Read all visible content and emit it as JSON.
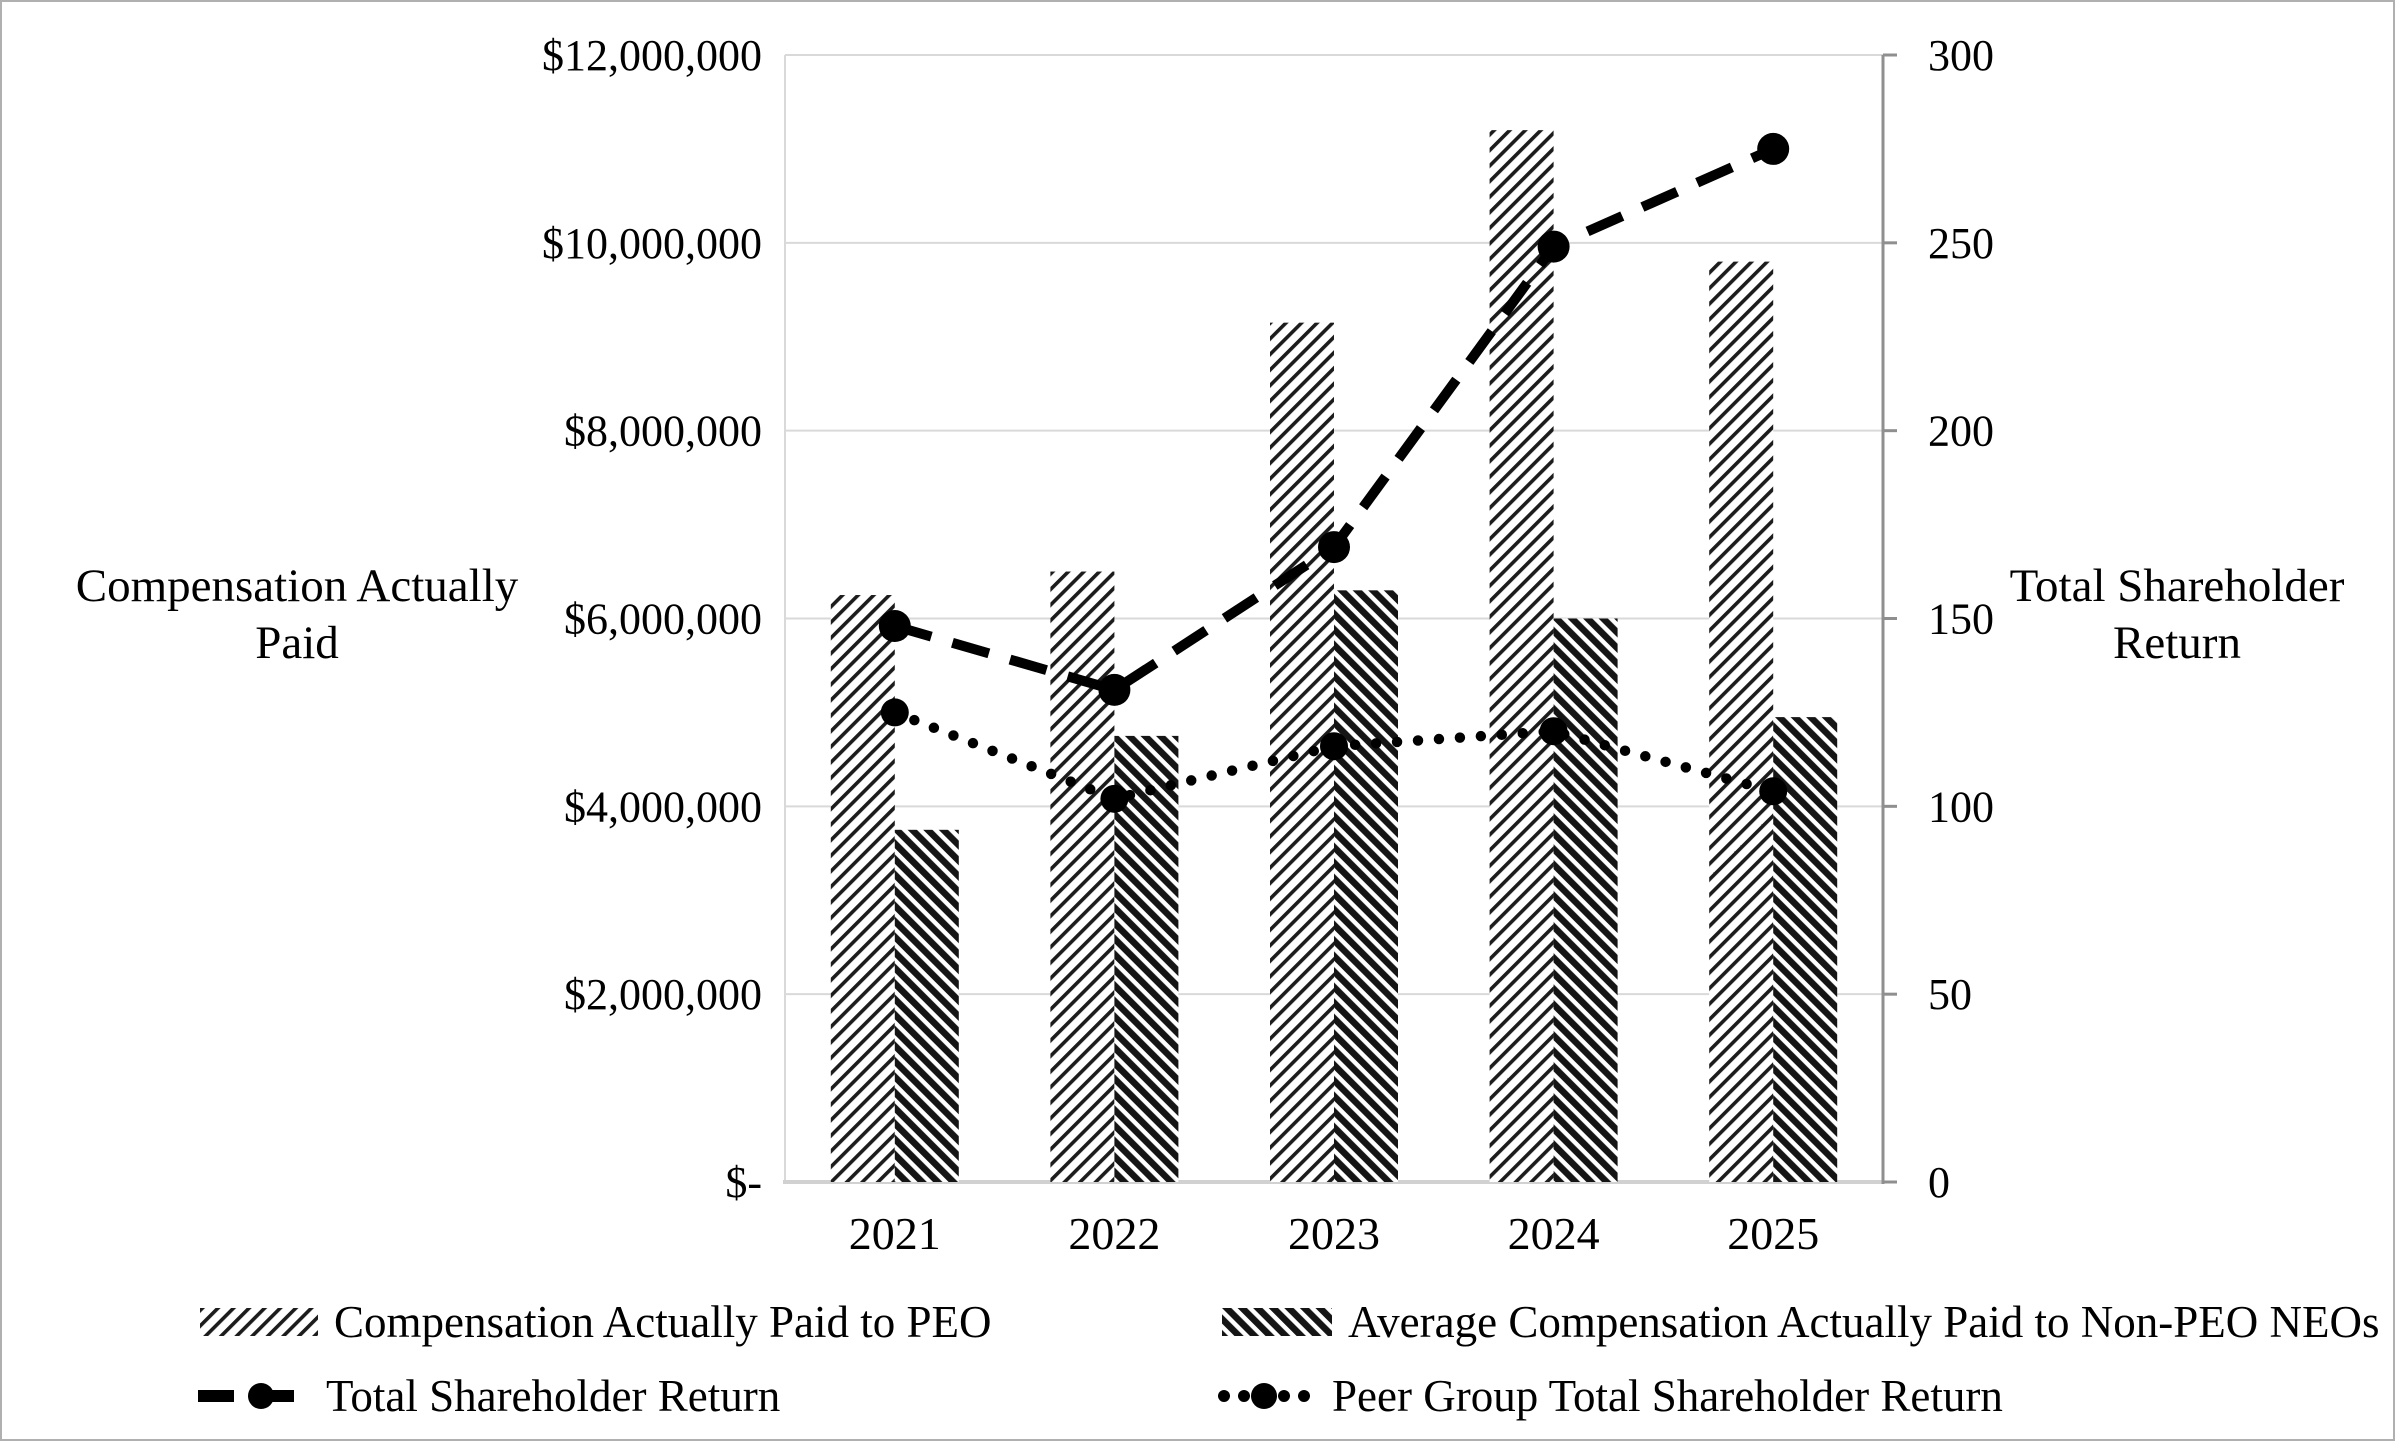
{
  "figure": {
    "background": "#ffffff",
    "border_color": "#b0b0b0",
    "text_color": "#000000",
    "gridline_color": "#d9d9d9",
    "right_axis_color": "#8f8f8f",
    "series_color": "#000000"
  },
  "chart_data": {
    "type": "bar+line combo (pay versus performance)",
    "categories": [
      "2021",
      "2022",
      "2023",
      "2024",
      "2025"
    ],
    "series": [
      {
        "name": "Compensation Actually Paid to PEO",
        "kind": "bar",
        "axis": "left",
        "fill_pattern": "thin-forward-diagonal-hatch",
        "values": [
          6250000,
          6500000,
          9150000,
          11200000,
          9800000
        ]
      },
      {
        "name": "Average Compensation Actually Paid to Non-PEO NEOs",
        "kind": "bar",
        "axis": "left",
        "fill_pattern": "thick-backward-diagonal-hatch",
        "values": [
          3750000,
          4750000,
          6300000,
          6000000,
          4950000
        ]
      },
      {
        "name": "Total Shareholder Return",
        "kind": "line",
        "line_style": "dashed",
        "marker": "filled-circle",
        "axis": "right",
        "values": [
          148,
          131,
          169,
          249,
          275
        ]
      },
      {
        "name": "Peer Group Total Shareholder Return",
        "kind": "line",
        "line_style": "dotted",
        "marker": "filled-circle",
        "axis": "right",
        "values": [
          125,
          102,
          116,
          120,
          104
        ]
      }
    ],
    "y_left": {
      "title_lines": [
        "Compensation Actually",
        "Paid"
      ],
      "min": 0,
      "max": 12000000,
      "step": 2000000,
      "tick_labels": [
        "$-",
        "$2,000,000",
        "$4,000,000",
        "$6,000,000",
        "$8,000,000",
        "$10,000,000",
        "$12,000,000"
      ]
    },
    "y_right": {
      "title_lines": [
        "Total Shareholder",
        "Return"
      ],
      "min": 0,
      "max": 300,
      "step": 50,
      "tick_labels": [
        "0",
        "50",
        "100",
        "150",
        "200",
        "250",
        "300"
      ]
    },
    "grid": "horizontal gridlines on",
    "legend_position": "bottom"
  }
}
